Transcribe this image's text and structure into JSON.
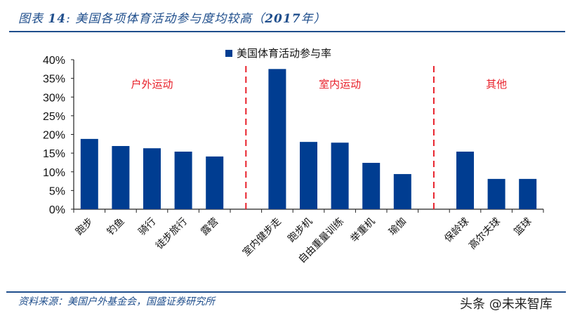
{
  "header": {
    "title_prefix": "图表 ",
    "title_number": "14",
    "title_text": ": 美国各项体育活动参与度均较高（",
    "title_year": "2017",
    "title_suffix": "年）"
  },
  "footer": {
    "source": "资料来源：美国户外基金会，国盛证券研究所",
    "watermark": "头条 @未来智库"
  },
  "colors": {
    "bar": "#003d91",
    "rule": "#1f4e8c",
    "group_label": "#e8202a",
    "divider": "#e8202a",
    "axis": "#222222"
  },
  "chart_data": {
    "type": "bar",
    "title": "美国各项体育活动参与度均较高（2017年）",
    "xlabel": "",
    "ylabel": "",
    "ylim": [
      0,
      0.4
    ],
    "yticks": [
      "0%",
      "5%",
      "10%",
      "15%",
      "20%",
      "25%",
      "30%",
      "35%",
      "40%"
    ],
    "legend": {
      "position": "top",
      "entries": [
        "美国体育活动参与率"
      ]
    },
    "grid": false,
    "groups": [
      {
        "label": "户外运动",
        "categories": [
          "跑步",
          "钓鱼",
          "骑行",
          "徒步旅行",
          "露营"
        ],
        "values": [
          0.188,
          0.169,
          0.163,
          0.154,
          0.141
        ]
      },
      {
        "label": "室内运动",
        "categories": [
          "室内健步走",
          "跑步机",
          "自由重量训练",
          "举重机",
          "瑜伽"
        ],
        "values": [
          0.375,
          0.18,
          0.178,
          0.124,
          0.094
        ]
      },
      {
        "label": "其他",
        "categories": [
          "保龄球",
          "高尔夫球",
          "篮球"
        ],
        "values": [
          0.154,
          0.081,
          0.081
        ]
      }
    ],
    "categories": [
      "跑步",
      "钓鱼",
      "骑行",
      "徒步旅行",
      "露营",
      "",
      "室内健步走",
      "跑步机",
      "自由重量训练",
      "举重机",
      "瑜伽",
      "",
      "保龄球",
      "高尔夫球",
      "篮球"
    ],
    "series": [
      {
        "name": "美国体育活动参与率",
        "values": [
          0.188,
          0.169,
          0.163,
          0.154,
          0.141,
          null,
          0.375,
          0.18,
          0.178,
          0.124,
          0.094,
          null,
          0.154,
          0.081,
          0.081
        ]
      }
    ]
  }
}
